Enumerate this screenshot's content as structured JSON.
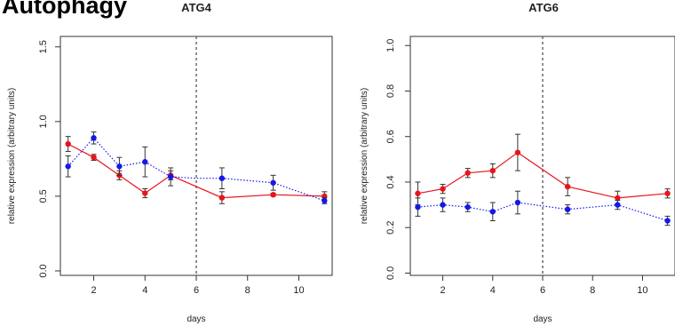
{
  "page_title": "Autophagy",
  "chart_data": [
    {
      "type": "line",
      "title": "ATG4",
      "xlabel": "days",
      "ylabel": "relative expression (arbitrary units)",
      "xlim": [
        0.7,
        11.3
      ],
      "ylim": [
        -0.03,
        1.57
      ],
      "xticks": [
        2,
        4,
        6,
        8,
        10
      ],
      "yticks": [
        0.0,
        0.5,
        1.0,
        1.5
      ],
      "ytick_labels": [
        "0.0",
        "0.5",
        "1.0",
        "1.5"
      ],
      "vline_x": 6,
      "grid": false,
      "series": [
        {
          "color": "#e8141c",
          "style": "solid",
          "x": [
            1,
            2,
            3,
            4,
            5,
            7,
            9,
            11
          ],
          "y": [
            0.85,
            0.76,
            0.64,
            0.52,
            0.64,
            0.49,
            0.51,
            0.5
          ],
          "err": [
            0.05,
            0.02,
            0.03,
            0.03,
            0.03,
            0.04,
            0.01,
            0.03
          ]
        },
        {
          "color": "#1418e8",
          "style": "dotted",
          "x": [
            1,
            2,
            3,
            4,
            5,
            6,
            7,
            9,
            11
          ],
          "y": [
            0.7,
            0.89,
            0.7,
            0.73,
            0.63,
            0.62,
            0.62,
            0.59,
            0.47
          ],
          "err": [
            0.07,
            0.04,
            0.06,
            0.1,
            0.06,
            0.0,
            0.07,
            0.05,
            0.02
          ]
        }
      ]
    },
    {
      "type": "line",
      "title": "ATG6",
      "xlabel": "days",
      "ylabel": "relative expression (arbitrary units)",
      "xlim": [
        0.7,
        11.3
      ],
      "ylim": [
        -0.01,
        1.04
      ],
      "xticks": [
        2,
        4,
        6,
        8,
        10
      ],
      "yticks": [
        0.0,
        0.2,
        0.4,
        0.6,
        0.8,
        1.0
      ],
      "ytick_labels": [
        "0.0",
        "0.2",
        "0.4",
        "0.6",
        "0.8",
        "1.0"
      ],
      "vline_x": 6,
      "grid": false,
      "series": [
        {
          "color": "#e8141c",
          "style": "solid",
          "x": [
            1,
            2,
            3,
            4,
            5,
            7,
            9,
            11
          ],
          "y": [
            0.35,
            0.37,
            0.44,
            0.45,
            0.53,
            0.38,
            0.33,
            0.35
          ],
          "err": [
            0.05,
            0.02,
            0.02,
            0.03,
            0.08,
            0.04,
            0.03,
            0.02
          ]
        },
        {
          "color": "#1418e8",
          "style": "dotted",
          "x": [
            1,
            2,
            3,
            4,
            5,
            7,
            9,
            11
          ],
          "y": [
            0.29,
            0.3,
            0.29,
            0.27,
            0.31,
            0.28,
            0.3,
            0.23
          ],
          "err": [
            0.04,
            0.03,
            0.02,
            0.04,
            0.05,
            0.02,
            0.02,
            0.02
          ]
        }
      ]
    }
  ]
}
